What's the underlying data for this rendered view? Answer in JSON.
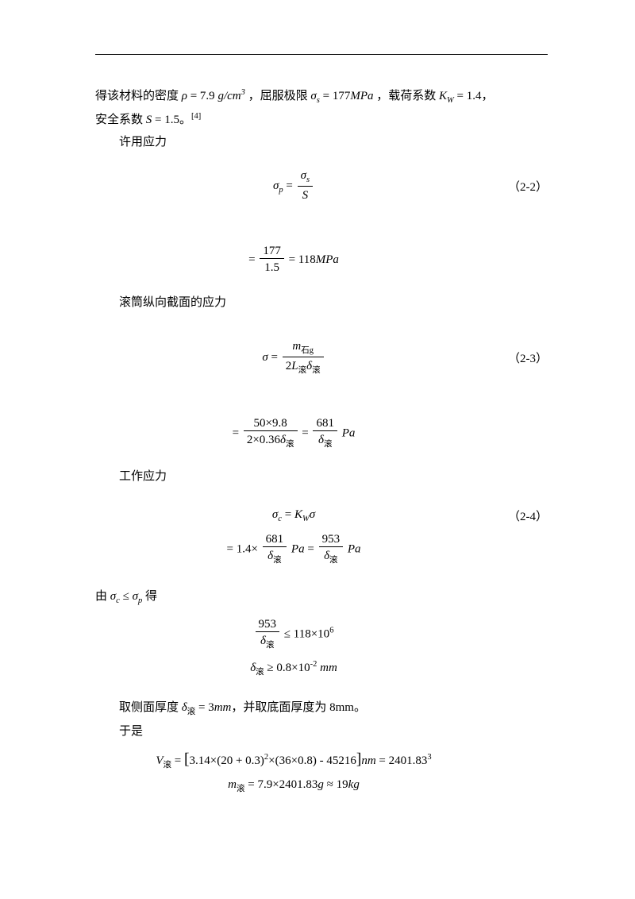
{
  "line1_a": "得该材料的密度",
  "rho": "ρ",
  "rho_val": " = 7.9 ",
  "rho_unit_num": "g",
  "rho_unit_den": "cm",
  "rho_unit_exp": "3",
  "line1_b": "，屈服极限",
  "sigma_s": "σ",
  "sigma_s_sub": "s",
  "sigma_s_val": " = 177",
  "sigma_s_unit": "MPa",
  "line1_c": "，载荷系数",
  "Kw": "K",
  "Kw_sub": "W",
  "Kw_val": " = 1.4",
  "line1_d": "，",
  "line2_a": "安全系数",
  "S": "S",
  "S_val": " = 1.5",
  "line2_b": "。",
  "ref": "[4]",
  "label_perm": "许用应力",
  "eq22_lhs_sym": "σ",
  "eq22_lhs_sub": "p",
  "eq22_eq": " = ",
  "eq22_num_sym": "σ",
  "eq22_num_sub": "s",
  "eq22_den": "S",
  "eq22_num_tag": "（2-2）",
  "eq22b_eq": "= ",
  "eq22b_num": "177",
  "eq22b_den": "1.5",
  "eq22b_res": " = 118",
  "eq22b_unit": "MPa",
  "label_long": "滚筒纵向截面的应力",
  "eq23_lhs": "σ",
  "eq23_eq": " = ",
  "eq23_num_a": "m",
  "eq23_num_sub": "石g",
  "eq23_den_a": "2",
  "eq23_den_L": "L",
  "eq23_den_Lsub": "滚",
  "eq23_den_d": "δ",
  "eq23_den_dsub": "滚",
  "eq23_tag": "（2-3）",
  "eq23b_eq": "= ",
  "eq23b_num1": "50×9.8",
  "eq23b_den1a": "2×0.36",
  "eq23b_den1_d": "δ",
  "eq23b_den1_dsub": "滚",
  "eq23b_mid": " = ",
  "eq23b_num2": "681",
  "eq23b_den2_d": "δ",
  "eq23b_den2_dsub": "滚",
  "eq23b_unit": "Pa",
  "label_work": "工作应力",
  "eq24_lhs_sym": "σ",
  "eq24_lhs_sub": "c",
  "eq24_eq": " = ",
  "eq24_K": "K",
  "eq24_Ksub": "W",
  "eq24_sigma": "σ",
  "eq24_tag": "（2-4）",
  "eq24b_eq": "= 1.4×",
  "eq24b_num1": "681",
  "eq24b_den1_d": "δ",
  "eq24b_den1_dsub": "滚",
  "eq24b_unit1": "Pa",
  "eq24b_mid": " = ",
  "eq24b_num2": "953",
  "eq24b_den2_d": "δ",
  "eq24b_den2_dsub": "滚",
  "eq24b_unit2": "Pa",
  "cond_a": "由",
  "cond_s1": "σ",
  "cond_s1sub": "c",
  "cond_le": " ≤ ",
  "cond_s2": "σ",
  "cond_s2sub": "p",
  "cond_b": "得",
  "ineq1_num": "953",
  "ineq1_den_d": "δ",
  "ineq1_den_dsub": "滚",
  "ineq1_rhs": " ≤ 118×10",
  "ineq1_exp": "6",
  "ineq2_d": "δ",
  "ineq2_dsub": "滚",
  "ineq2_rhs": " ≥ 0.8×10",
  "ineq2_exp": "-2",
  "ineq2_unit": " mm",
  "take_a": "取侧面厚度",
  "take_d": "δ",
  "take_dsub": "滚",
  "take_val": " = 3",
  "take_unit": "mm",
  "take_b": "，并取底面厚度为 8mm。",
  "then": "于是",
  "vol_V": "V",
  "vol_Vsub": "滚",
  "vol_eq": " = ",
  "vol_lb": "[",
  "vol_body": "3.14×(20 + 0.3)",
  "vol_exp1": "2",
  "vol_body2": "×(36×0.8) - 45216",
  "vol_rb": "]",
  "vol_unit": "nm",
  "vol_res": " = 2401.8",
  "vol_exp2": "3",
  "vol_cubed": "3",
  "mass_m": "m",
  "mass_msub": "滚",
  "mass_body": " = 7.9×2401.83",
  "mass_g": "g",
  "mass_approx": " ≈ 19",
  "mass_kg": "kg"
}
